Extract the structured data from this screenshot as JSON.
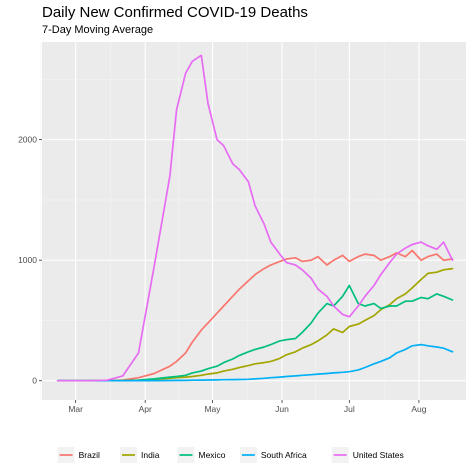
{
  "chart_data": {
    "type": "line",
    "title": "Daily New Confirmed COVID-19 Deaths",
    "subtitle": "7-Day Moving Average",
    "xlabel": "",
    "ylabel": "",
    "x_ticks": [
      "Mar",
      "Apr",
      "May",
      "Jun",
      "Jul",
      "Aug"
    ],
    "y_ticks": [
      0,
      1000,
      2000
    ],
    "ylim": [
      -160,
      2810
    ],
    "grid": true,
    "legend_position": "bottom",
    "x": [
      "Feb 22",
      "Mar 1",
      "Mar 8",
      "Mar 15",
      "Mar 22",
      "Mar 29",
      "Apr 5",
      "Apr 12",
      "Apr 15",
      "Apr 19",
      "Apr 22",
      "Apr 26",
      "Apr 29",
      "May 3",
      "May 6",
      "May 10",
      "May 13",
      "May 17",
      "May 20",
      "May 24",
      "May 27",
      "May 31",
      "Jun 3",
      "Jun 7",
      "Jun 10",
      "Jun 14",
      "Jun 17",
      "Jun 21",
      "Jun 24",
      "Jun 28",
      "Jul 1",
      "Jul 5",
      "Jul 8",
      "Jul 12",
      "Jul 15",
      "Jul 19",
      "Jul 22",
      "Jul 26",
      "Jul 29",
      "Aug 2",
      "Aug 5",
      "Aug 9",
      "Aug 12",
      "Aug 16"
    ],
    "series": [
      {
        "name": "Brazil",
        "color": "#F8766D",
        "values": [
          0,
          0,
          0,
          0,
          5,
          25,
          60,
          120,
          160,
          230,
          320,
          420,
          480,
          560,
          620,
          700,
          760,
          830,
          880,
          930,
          960,
          990,
          1010,
          1020,
          990,
          1000,
          1030,
          960,
          1000,
          1040,
          990,
          1030,
          1050,
          1040,
          1000,
          1030,
          1060,
          1030,
          1080,
          1000,
          1030,
          1050,
          1000,
          1010
        ]
      },
      {
        "name": "India",
        "color": "#A3A500",
        "values": [
          0,
          0,
          0,
          0,
          1,
          3,
          10,
          20,
          25,
          30,
          35,
          45,
          55,
          65,
          80,
          95,
          110,
          125,
          140,
          150,
          160,
          185,
          215,
          240,
          270,
          300,
          330,
          380,
          430,
          400,
          450,
          470,
          500,
          540,
          590,
          630,
          680,
          720,
          770,
          840,
          890,
          900,
          920,
          930
        ]
      },
      {
        "name": "Mexico",
        "color": "#00BF7D",
        "values": [
          0,
          0,
          0,
          0,
          0,
          5,
          15,
          30,
          35,
          45,
          65,
          80,
          100,
          120,
          150,
          180,
          210,
          240,
          260,
          280,
          300,
          330,
          340,
          350,
          400,
          480,
          560,
          640,
          620,
          700,
          790,
          640,
          620,
          640,
          600,
          620,
          620,
          660,
          660,
          690,
          680,
          720,
          700,
          670
        ]
      },
      {
        "name": "South Africa",
        "color": "#00B0F6",
        "values": [
          0,
          0,
          0,
          0,
          0,
          0,
          1,
          2,
          3,
          3,
          4,
          5,
          6,
          7,
          8,
          9,
          10,
          12,
          15,
          20,
          25,
          30,
          35,
          40,
          45,
          50,
          55,
          60,
          65,
          70,
          75,
          90,
          110,
          140,
          160,
          190,
          230,
          260,
          290,
          300,
          290,
          280,
          270,
          240
        ]
      },
      {
        "name": "United States",
        "color": "#E76BF3",
        "values": [
          0,
          0,
          0,
          4,
          40,
          230,
          950,
          1700,
          2250,
          2550,
          2650,
          2700,
          2300,
          2000,
          1950,
          1800,
          1750,
          1650,
          1450,
          1300,
          1150,
          1050,
          980,
          960,
          920,
          850,
          760,
          700,
          620,
          550,
          530,
          620,
          700,
          790,
          880,
          980,
          1050,
          1100,
          1130,
          1150,
          1120,
          1090,
          1150,
          1000
        ]
      }
    ]
  }
}
